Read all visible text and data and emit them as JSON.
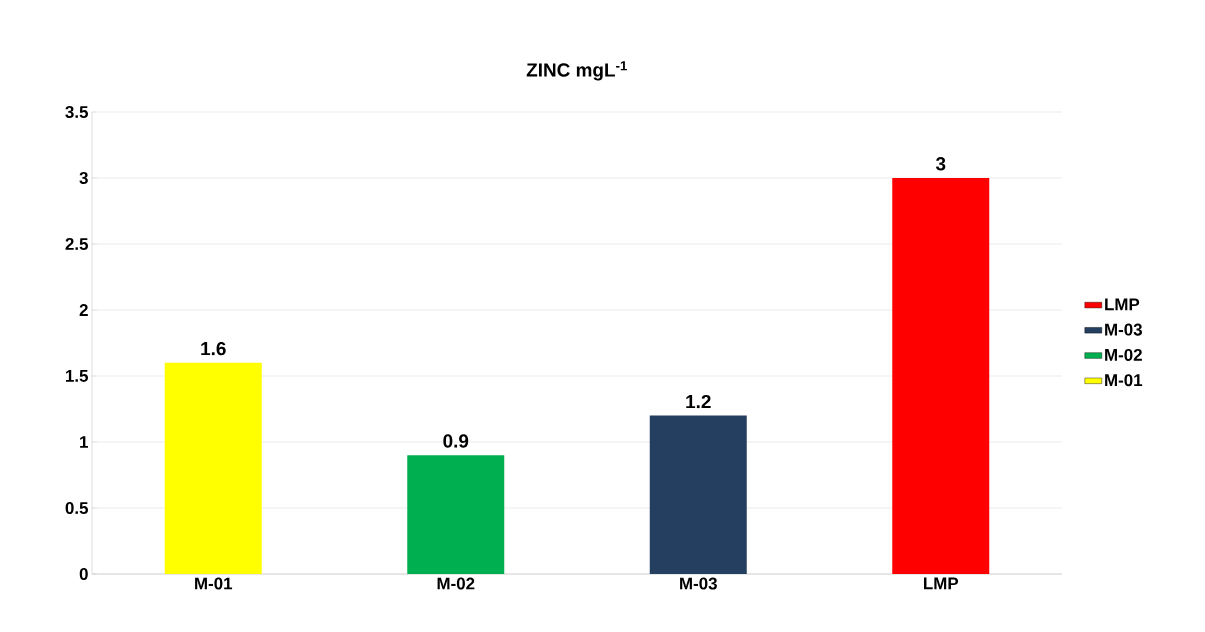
{
  "chart_data": {
    "type": "bar",
    "title": "ZINC mgL$^{-1}$",
    "categories": [
      "M-01",
      "M-02",
      "M-03",
      "LMP"
    ],
    "series": [
      {
        "name": "M-01",
        "color": "#ffff00",
        "values": [
          1.6,
          null,
          null,
          null
        ]
      },
      {
        "name": "M-02",
        "color": "#00b050",
        "values": [
          null,
          0.9,
          null,
          null
        ]
      },
      {
        "name": "M-03",
        "color": "#243f60",
        "values": [
          null,
          null,
          1.2,
          null
        ]
      },
      {
        "name": "LMP",
        "color": "#ff0000",
        "values": [
          null,
          null,
          null,
          3
        ]
      }
    ],
    "ylim": [
      0,
      3.5
    ],
    "yticks": [
      0,
      0.5,
      1,
      1.5,
      2,
      2.5,
      3,
      3.5
    ],
    "grid": "y",
    "legend": "right",
    "data_labels": true
  }
}
